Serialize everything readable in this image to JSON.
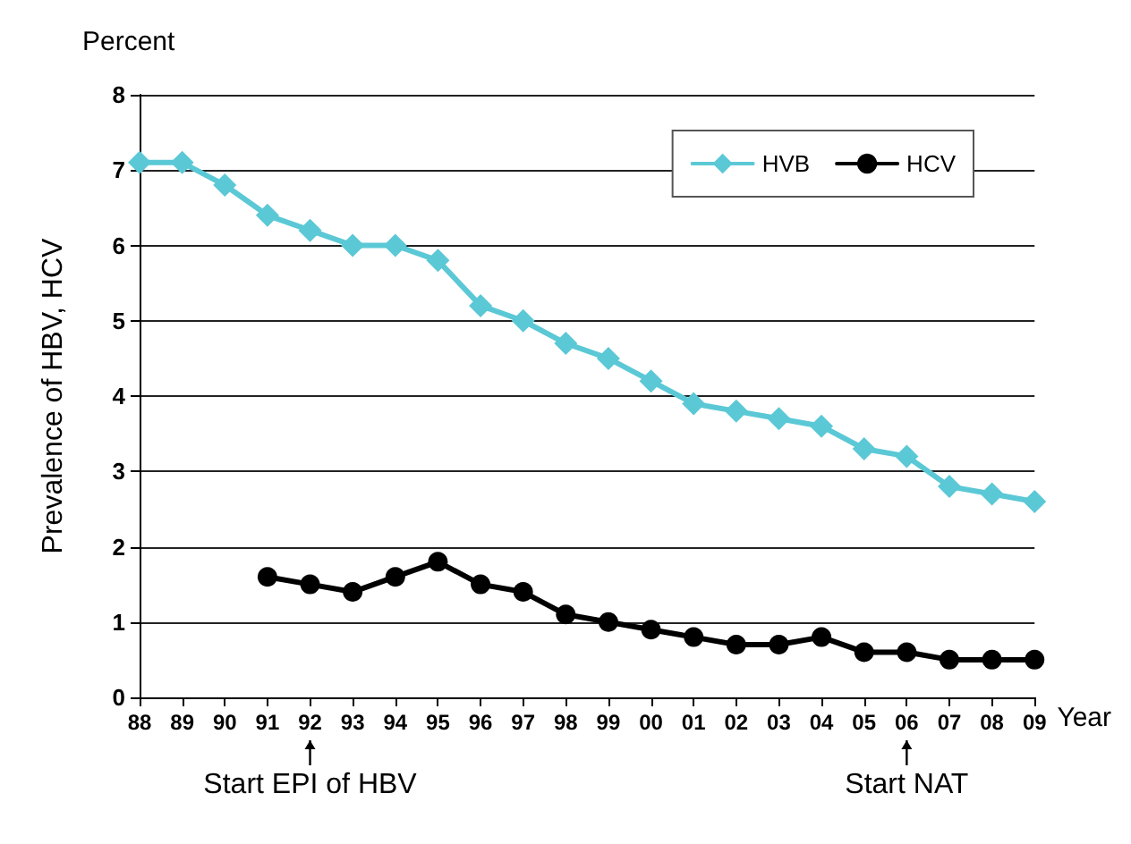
{
  "chart_data": {
    "type": "line",
    "ylabel": "Prevalence of HBV, HCV",
    "xlabel": "Year",
    "categories": [
      "88",
      "89",
      "90",
      "91",
      "92",
      "93",
      "94",
      "95",
      "96",
      "97",
      "98",
      "99",
      "00",
      "01",
      "02",
      "03",
      "04",
      "05",
      "06",
      "07",
      "08",
      "09"
    ],
    "series": [
      {
        "name": "HVB",
        "color": "#5bc8d6",
        "marker": "diamond",
        "values": [
          7.1,
          7.1,
          6.8,
          6.4,
          6.2,
          6.0,
          6.0,
          5.8,
          5.2,
          5.0,
          4.7,
          4.5,
          4.2,
          3.9,
          3.8,
          3.7,
          3.6,
          3.3,
          3.2,
          2.8,
          2.7,
          2.6
        ]
      },
      {
        "name": "HCV",
        "color": "#000000",
        "marker": "circle",
        "values": [
          null,
          null,
          null,
          1.6,
          1.5,
          1.4,
          1.6,
          1.8,
          1.5,
          1.4,
          1.1,
          1.0,
          0.9,
          0.8,
          0.7,
          0.7,
          0.8,
          0.6,
          0.6,
          0.5,
          0.5,
          0.5
        ]
      }
    ],
    "ylim": [
      0,
      8
    ],
    "yticks": [
      0,
      1,
      2,
      3,
      4,
      5,
      6,
      7,
      8
    ],
    "grid": "y",
    "legend": "top right",
    "annotations": [
      "Percent",
      {
        "text": "Start EPI of HBV",
        "x": "92"
      },
      {
        "text": "Start NAT",
        "x": "06"
      }
    ]
  }
}
